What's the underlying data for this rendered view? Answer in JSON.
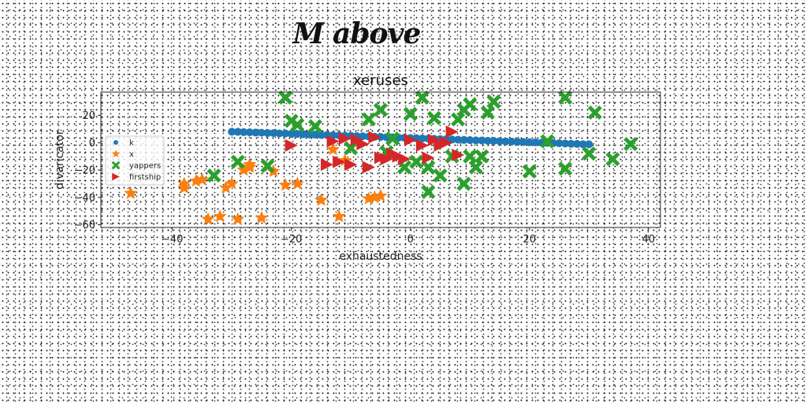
{
  "figure": {
    "title": "M above"
  },
  "chart_data": {
    "type": "scatter",
    "title": "xeruses",
    "xlabel": "exhaustedness",
    "ylabel": "divaricator",
    "xlim": [
      -52,
      42
    ],
    "ylim": [
      -62,
      37
    ],
    "xticks": [
      -40,
      -20,
      0,
      20,
      40
    ],
    "yticks": [
      20,
      0,
      -20,
      -40,
      -60
    ],
    "grid": false,
    "legend_position": "center-left",
    "series": [
      {
        "name": "k",
        "marker": "circle",
        "color": "#1f77b4",
        "x": [
          -30,
          -29,
          -28,
          -27,
          -26,
          -25,
          -24,
          -23,
          -22,
          -21,
          -20,
          -19,
          -18,
          -17,
          -16,
          -15,
          -14,
          -13,
          -12,
          -11,
          -10,
          -9,
          -8,
          -7,
          -6,
          -5,
          -4,
          -3,
          -2,
          -1,
          0,
          1,
          2,
          3,
          4,
          5,
          6,
          7,
          8,
          9,
          10,
          11,
          12,
          13,
          14,
          15,
          16,
          17,
          18,
          19,
          20,
          21,
          22,
          23,
          24,
          25,
          26,
          27,
          28,
          29,
          30
        ],
        "y": [
          8,
          7.9,
          7.7,
          7.6,
          7.4,
          7.3,
          7.1,
          7,
          6.8,
          6.7,
          6.5,
          6.4,
          6.2,
          6,
          5.9,
          5.7,
          5.6,
          5.4,
          5.3,
          5.1,
          5,
          4.8,
          4.7,
          4.5,
          4.3,
          4.2,
          4,
          3.9,
          3.7,
          3.6,
          3.4,
          3.3,
          3.1,
          3,
          2.8,
          2.6,
          2.5,
          2.3,
          2.2,
          2,
          1.9,
          1.7,
          1.6,
          1.4,
          1.3,
          1.1,
          0.9,
          0.8,
          0.6,
          0.5,
          0.3,
          0.2,
          0,
          -0.1,
          -0.3,
          -0.4,
          -0.6,
          -0.8,
          -0.9,
          -1.1,
          -1.2
        ]
      },
      {
        "name": "x",
        "marker": "star",
        "color": "#ff7f0e",
        "x": [
          -47,
          -38,
          -38,
          -36,
          -35,
          -34,
          -32,
          -31,
          -30,
          -29,
          -28,
          -27,
          -27,
          -25,
          -23,
          -21,
          -19,
          -15,
          -13,
          -12,
          -11,
          -7,
          -6,
          -5
        ],
        "y": [
          -37,
          -30,
          -33,
          -28,
          -27,
          -56,
          -54,
          -33,
          -30,
          -56,
          -20,
          -18,
          -16,
          -55,
          -21,
          -31,
          -30,
          -42,
          -5,
          -54,
          -13,
          -41,
          -40,
          -39
        ]
      },
      {
        "name": "yappers",
        "marker": "x",
        "color": "#2ca02c",
        "x": [
          -33,
          -29,
          -24,
          -21,
          -20,
          -19,
          -16,
          -10,
          -7,
          -5,
          -4,
          -3,
          -1,
          0,
          1,
          2,
          3,
          3,
          4,
          5,
          7,
          8,
          9,
          9,
          10,
          10,
          11,
          12,
          13,
          14,
          20,
          23,
          26,
          26,
          30,
          31,
          34,
          37
        ],
        "y": [
          -24,
          -14,
          -17,
          33,
          16,
          13,
          12,
          -4,
          17,
          24,
          -7,
          3,
          -18,
          21,
          -14,
          33,
          -36,
          -18,
          18,
          -24,
          -10,
          17,
          -30,
          24,
          28,
          -10,
          -18,
          -10,
          22,
          30,
          -21,
          1,
          -19,
          33,
          -8,
          22,
          -12,
          -1
        ]
      },
      {
        "name": "firstship",
        "marker": "triangle-right",
        "color": "#d62728",
        "x": [
          -20,
          -14,
          -13,
          -12,
          -11,
          -10,
          -9,
          -8,
          -7,
          -6,
          -5,
          -4,
          -3,
          -2,
          -1,
          0,
          2,
          3,
          4,
          5,
          6,
          7,
          8
        ],
        "y": [
          -2,
          -16,
          1,
          -14,
          3,
          -16,
          2,
          -1,
          -18,
          4,
          -11,
          -12,
          -8,
          -10,
          -12,
          2,
          -2,
          -11,
          2,
          -2,
          0,
          8,
          -9
        ]
      }
    ]
  }
}
